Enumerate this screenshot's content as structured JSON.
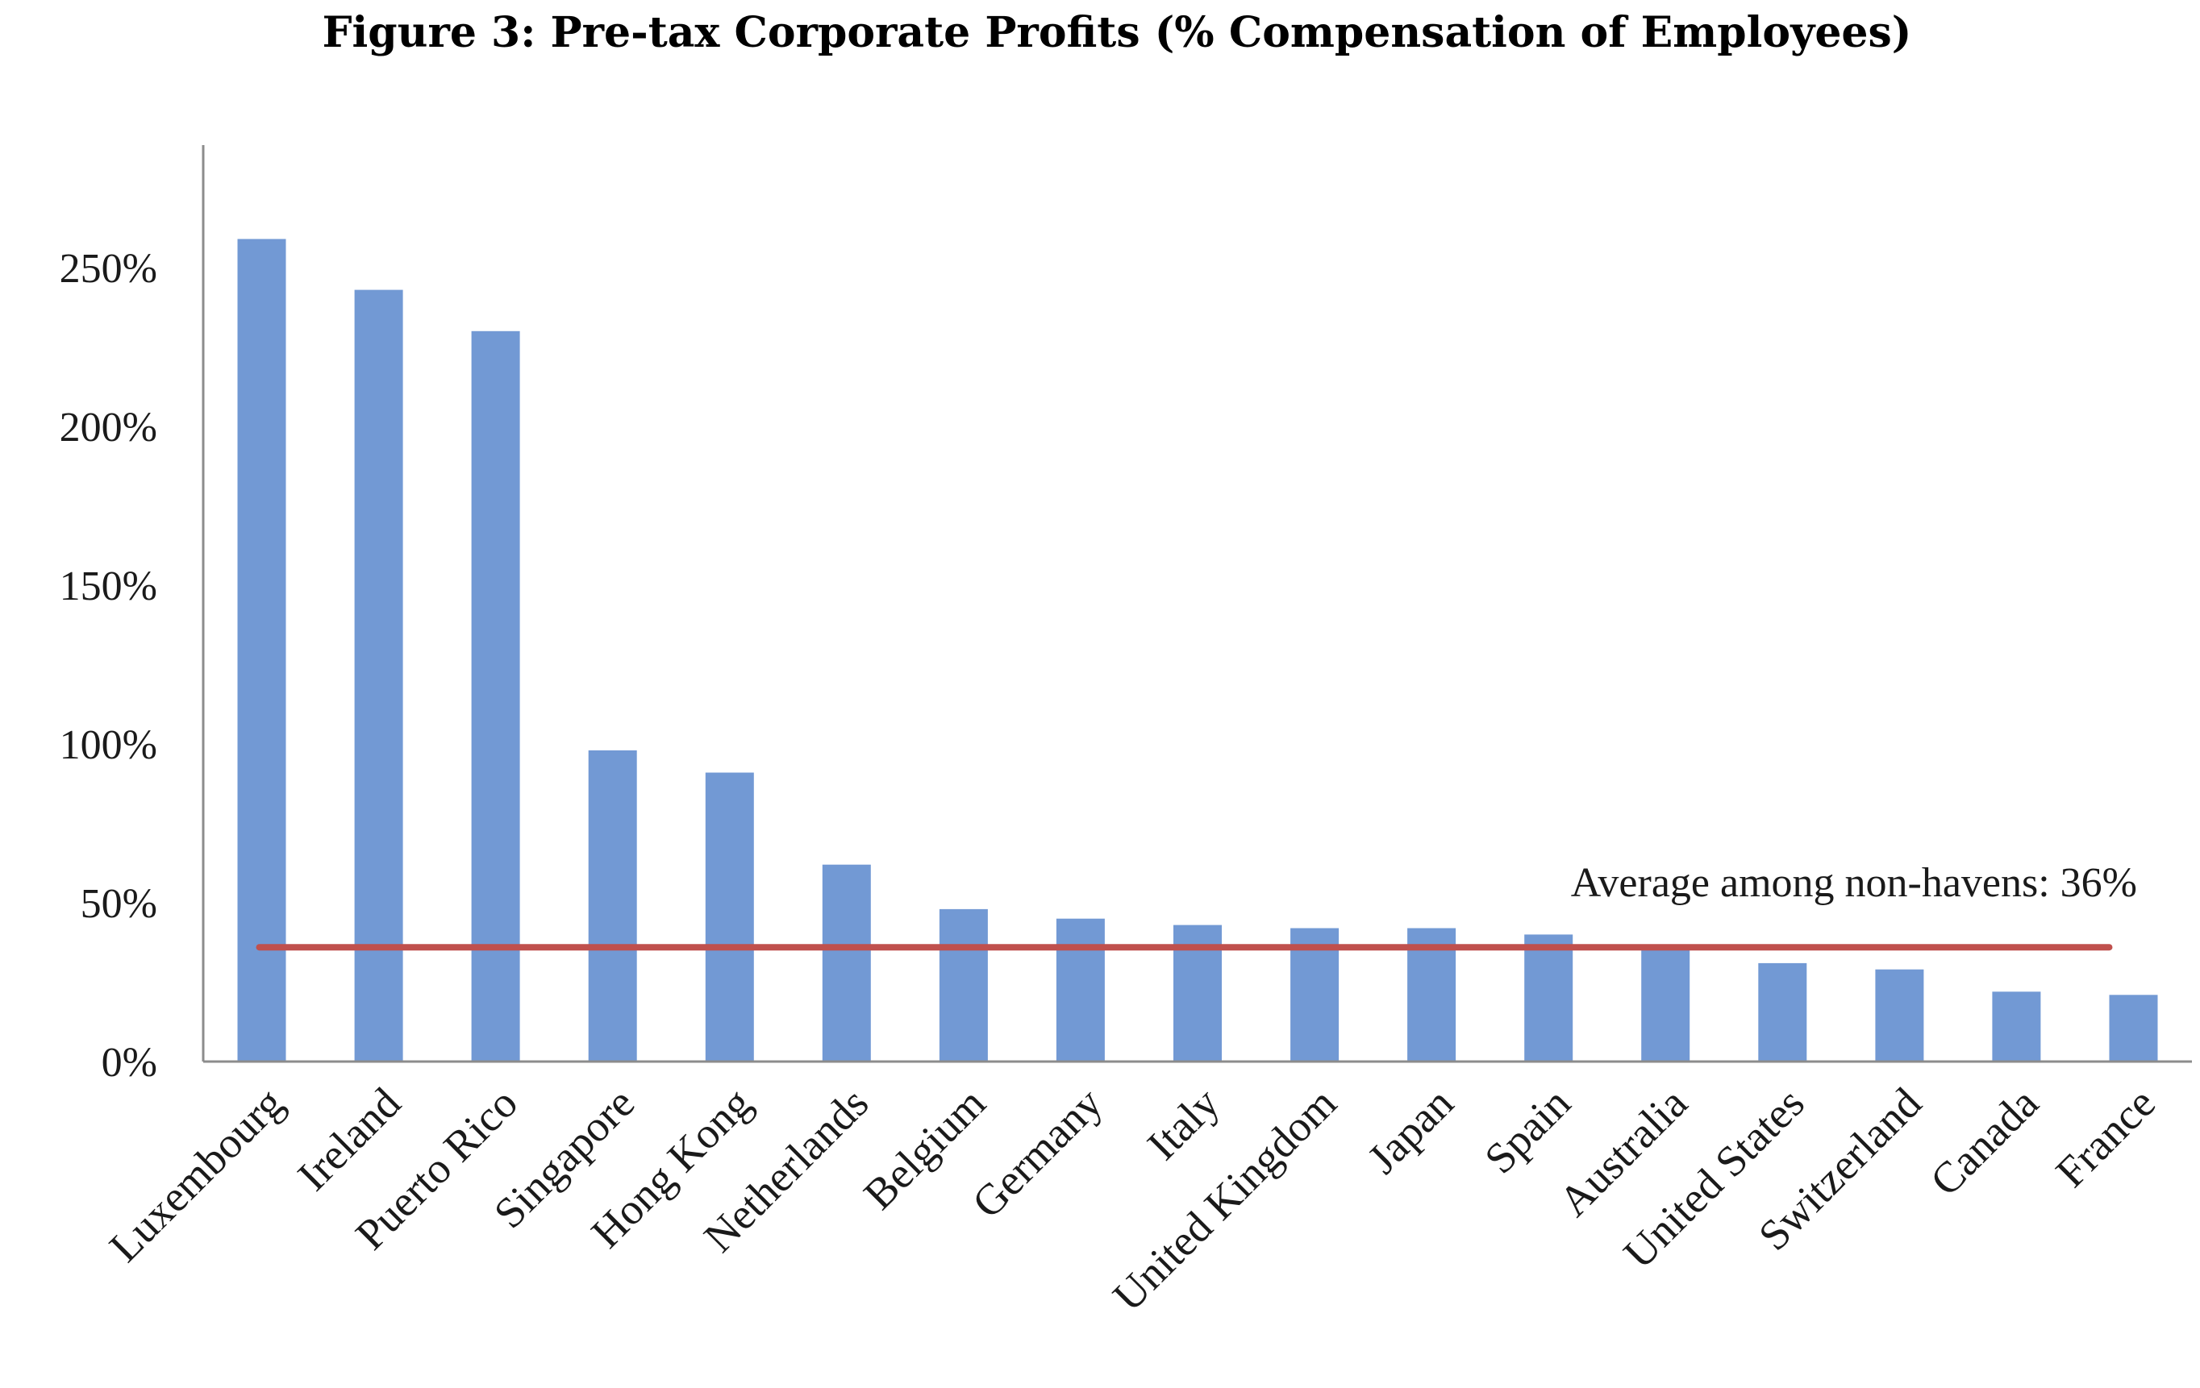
{
  "chart_data": {
    "type": "bar",
    "title": "Figure 3: Pre-tax Corporate Profits (% Compensation of Employees)",
    "xlabel": "",
    "ylabel": "",
    "ylim": [
      0,
      290
    ],
    "yticks": [
      "0%",
      "50%",
      "100%",
      "150%",
      "200%",
      "250%"
    ],
    "ytick_values": [
      0,
      50,
      100,
      150,
      200,
      250
    ],
    "categories": [
      "Luxembourg",
      "Ireland",
      "Puerto Rico",
      "Singapore",
      "Hong Kong",
      "Netherlands",
      "Belgium",
      "Germany",
      "Italy",
      "United Kingdom",
      "Japan",
      "Spain",
      "Australia",
      "United States",
      "Switzerland",
      "Canada",
      "France"
    ],
    "values": [
      259,
      243,
      230,
      98,
      91,
      62,
      48,
      45,
      43,
      42,
      42,
      40,
      36,
      31,
      29,
      22,
      21
    ],
    "bar_color": "#7299d4",
    "grid": false,
    "reference_line": {
      "value": 36,
      "label": "Average among non-havens: 36%",
      "color": "#c0504d"
    }
  }
}
